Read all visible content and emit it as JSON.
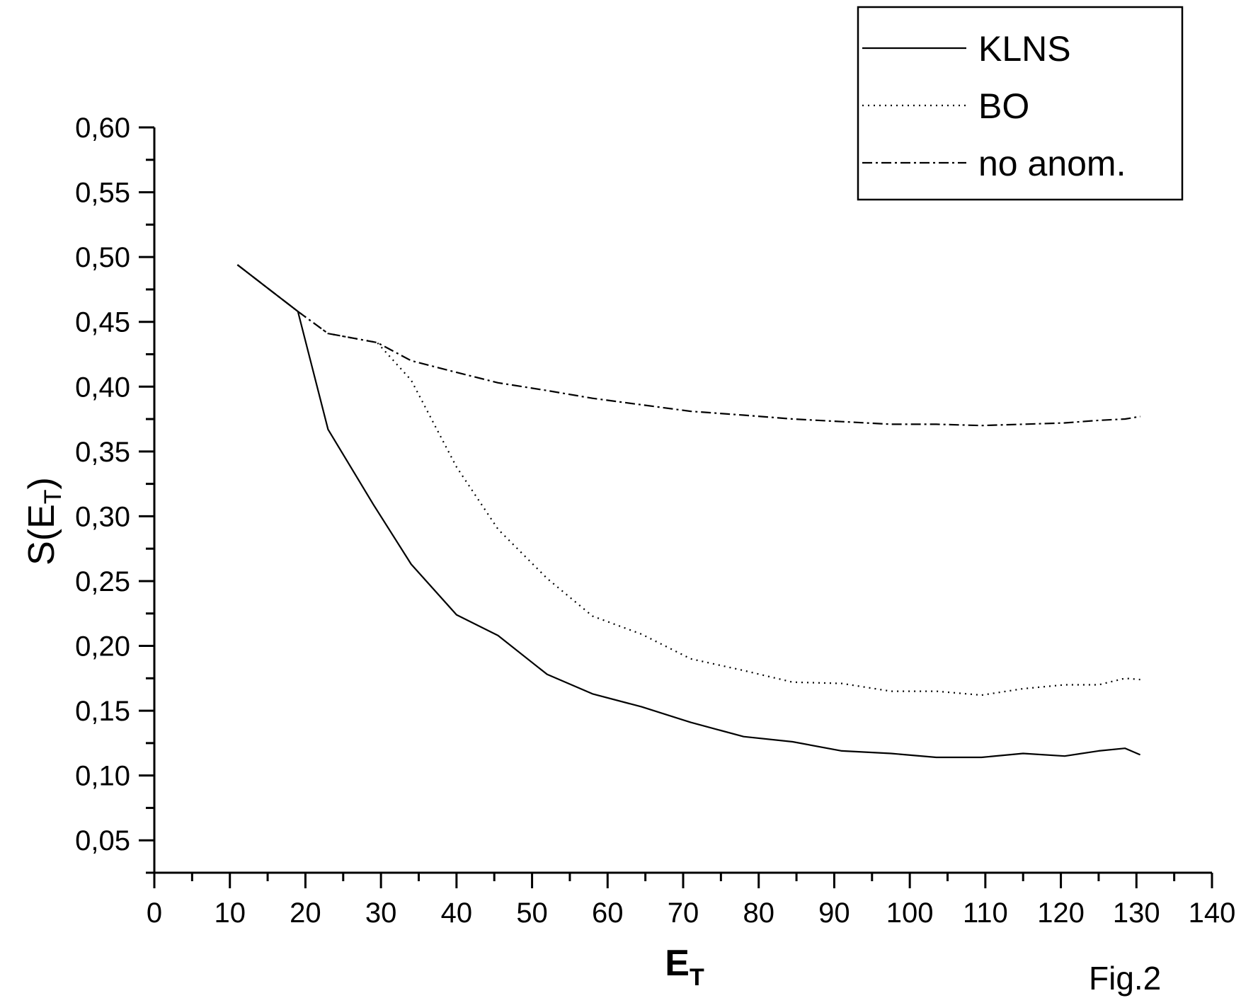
{
  "figure_label": "Fig.2",
  "chart_data": {
    "type": "line",
    "title": "",
    "xlabel": {
      "main": "E",
      "sub": "T"
    },
    "ylabel": {
      "pre": "S(E",
      "sub": "T",
      "post": ")"
    },
    "xlim": [
      0,
      140
    ],
    "ylim": [
      0.025,
      0.6
    ],
    "x_ticks": [
      0,
      10,
      20,
      30,
      40,
      50,
      60,
      70,
      80,
      90,
      100,
      110,
      120,
      130,
      140
    ],
    "x_tick_labels": [
      "0",
      "10",
      "20",
      "30",
      "40",
      "50",
      "60",
      "70",
      "80",
      "90",
      "100",
      "110",
      "120",
      "130",
      "140"
    ],
    "y_ticks": [
      0.05,
      0.1,
      0.15,
      0.2,
      0.25,
      0.3,
      0.35,
      0.4,
      0.45,
      0.5,
      0.55,
      0.6
    ],
    "y_tick_labels": [
      "0,05",
      "0,10",
      "0,15",
      "0,20",
      "0,25",
      "0,30",
      "0,35",
      "0,40",
      "0,45",
      "0,50",
      "0,55",
      "0,60"
    ],
    "grid": false,
    "legend": "top-right",
    "series": [
      {
        "name": "KLNS",
        "style": "solid",
        "x": [
          11,
          15,
          19,
          23,
          29,
          34,
          40,
          45.5,
          52,
          58,
          64.5,
          71,
          78,
          84.5,
          91,
          97.5,
          103.5,
          109.5,
          115,
          120.5,
          125,
          128.5,
          130.5
        ],
        "y": [
          0.494,
          0.476,
          0.458,
          0.367,
          0.309,
          0.263,
          0.224,
          0.208,
          0.178,
          0.163,
          0.153,
          0.141,
          0.13,
          0.126,
          0.119,
          0.117,
          0.114,
          0.114,
          0.117,
          0.115,
          0.119,
          0.121,
          0.116
        ]
      },
      {
        "name": "BO",
        "style": "dotted",
        "x": [
          11,
          15,
          19,
          23,
          29.5,
          34,
          40,
          45.5,
          52,
          58,
          64.5,
          71,
          78,
          84.5,
          91,
          97.5,
          103.5,
          109.5,
          115,
          120.5,
          125,
          128.5,
          130.5
        ],
        "y": [
          0.494,
          0.476,
          0.458,
          0.441,
          0.434,
          0.405,
          0.338,
          0.29,
          0.252,
          0.223,
          0.209,
          0.19,
          0.181,
          0.172,
          0.171,
          0.165,
          0.165,
          0.162,
          0.167,
          0.17,
          0.17,
          0.175,
          0.174
        ]
      },
      {
        "name": "no anom.",
        "style": "dashdot",
        "x": [
          11,
          15,
          19,
          23,
          29.5,
          34,
          40,
          45.5,
          52,
          58,
          64.5,
          71,
          78,
          84.5,
          91,
          97.5,
          103.5,
          109.5,
          115,
          120.5,
          125,
          128.5,
          130.5
        ],
        "y": [
          0.494,
          0.476,
          0.458,
          0.441,
          0.434,
          0.42,
          0.411,
          0.403,
          0.397,
          0.391,
          0.386,
          0.381,
          0.378,
          0.375,
          0.373,
          0.371,
          0.371,
          0.37,
          0.371,
          0.372,
          0.374,
          0.375,
          0.377
        ]
      }
    ]
  }
}
